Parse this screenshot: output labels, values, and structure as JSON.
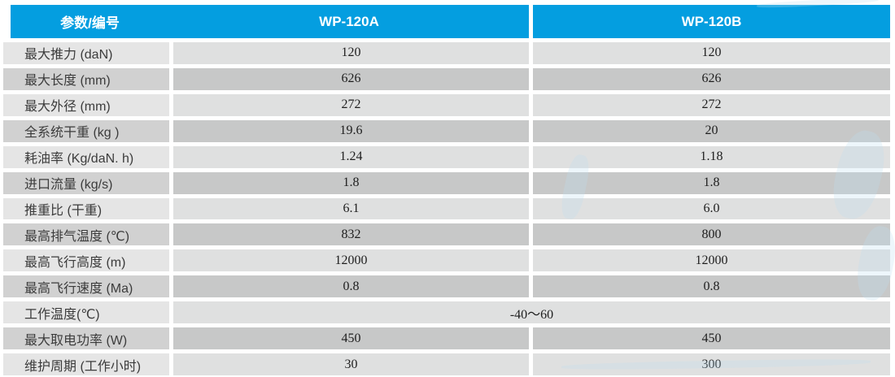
{
  "table": {
    "header": {
      "param_col": "参数/编号",
      "col_a": "WP-120A",
      "col_b": "WP-120B"
    },
    "rows": [
      {
        "label": "最大推力 (daN)",
        "a": "120",
        "b": "120"
      },
      {
        "label": "最大长度 (mm)",
        "a": "626",
        "b": "626"
      },
      {
        "label": "最大外径 (mm)",
        "a": "272",
        "b": "272"
      },
      {
        "label": "全系统干重 (kg )",
        "a": "19.6",
        "b": "20"
      },
      {
        "label": "耗油率 (Kg/daN. h)",
        "a": "1.24",
        "b": "1.18"
      },
      {
        "label": "进口流量  (kg/s)",
        "a": "1.8",
        "b": "1.8"
      },
      {
        "label": "推重比  (干重)",
        "a": "6.1",
        "b": "6.0"
      },
      {
        "label": "最高排气温度  (℃)",
        "a": "832",
        "b": "800"
      },
      {
        "label": "最高飞行高度  (m)",
        "a": "12000",
        "b": "12000"
      },
      {
        "label": "最高飞行速度 (Ma)",
        "a": "0.8",
        "b": "0.8"
      },
      {
        "label": "工作温度(℃)",
        "merged": "-40～60"
      },
      {
        "label": "最大取电功率  (W)",
        "a": "450",
        "b": "450"
      },
      {
        "label": "维护周期  (工作小时)",
        "a": "30",
        "b": "300"
      }
    ],
    "colors": {
      "header_blue": "#049ee0",
      "value_row_light": "#dfe0e0",
      "value_row_dark": "#c7c8c8",
      "label_row_light": "#e5e5e5",
      "label_row_dark": "#d1d1d1"
    }
  }
}
